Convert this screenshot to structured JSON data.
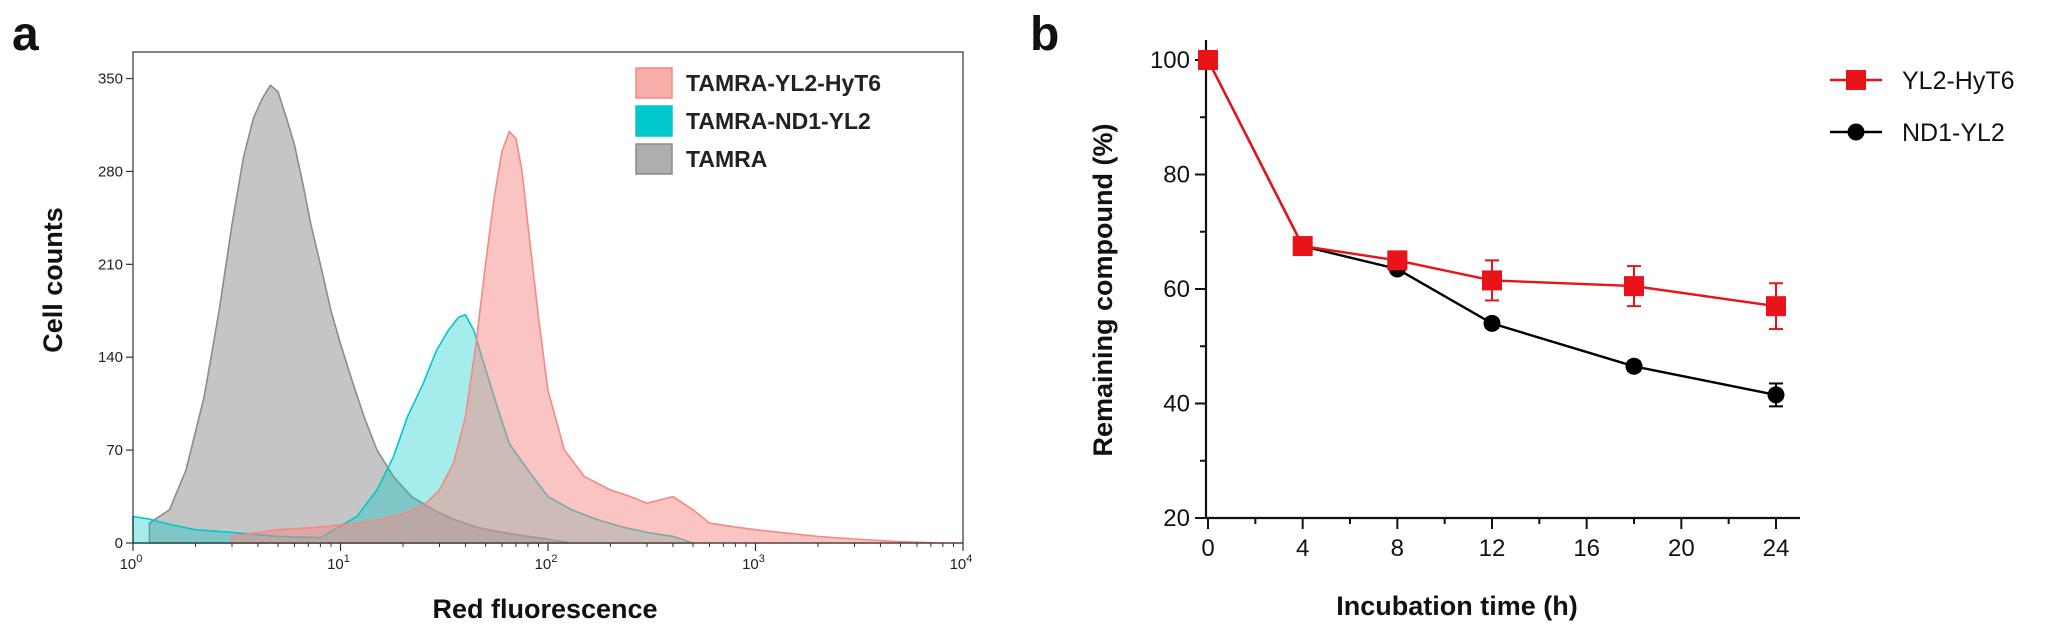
{
  "panels": [
    {
      "letter": "a"
    },
    {
      "letter": "b"
    }
  ],
  "colors": {
    "tamra_yl2_hyt6": "#f48a84",
    "tamra_nd1_yl2": "#00c8cc",
    "tamra": "#8c8c8c",
    "yl2_hyt6": "#e8141a",
    "nd1_yl2": "#000000"
  },
  "chart_data": [
    {
      "type": "area",
      "panel": "a",
      "xlabel": "Red fluorescence",
      "ylabel": "Cell counts",
      "xscale": "log",
      "xlim": [
        1,
        10000
      ],
      "ylim": [
        0,
        370
      ],
      "x_ticks": [
        1,
        10,
        100,
        1000,
        10000
      ],
      "x_tick_labels": [
        {
          "base": "10",
          "exp": "0"
        },
        {
          "base": "10",
          "exp": "1"
        },
        {
          "base": "10",
          "exp": "2"
        },
        {
          "base": "10",
          "exp": "3"
        },
        {
          "base": "10",
          "exp": "4"
        }
      ],
      "y_ticks": [
        0,
        70,
        140,
        210,
        280,
        350
      ],
      "y_tick_labels": [
        "0",
        "70",
        "140",
        "210",
        "280",
        "350"
      ],
      "grid": false,
      "legend_position": "top-right",
      "series": [
        {
          "name": "TAMRA",
          "color": "#8c8c8c",
          "x": [
            1.2,
            1.5,
            1.8,
            2.2,
            2.6,
            3.0,
            3.4,
            3.8,
            4.2,
            4.6,
            5.0,
            5.5,
            6.0,
            6.6,
            7.2,
            8.0,
            9.0,
            10,
            11.5,
            13,
            15,
            18,
            22,
            28,
            35,
            45,
            60,
            80,
            100,
            130
          ],
          "values": [
            15,
            25,
            55,
            110,
            175,
            240,
            290,
            320,
            335,
            345,
            340,
            320,
            300,
            270,
            240,
            210,
            175,
            150,
            120,
            95,
            70,
            50,
            35,
            25,
            18,
            12,
            8,
            5,
            3,
            0
          ]
        },
        {
          "name": "TAMRA-ND1-YL2",
          "color": "#00c8cc",
          "x": [
            1.0,
            1.2,
            1.5,
            2.0,
            3.0,
            5.0,
            8.0,
            12,
            15,
            18,
            21,
            25,
            29,
            33,
            37,
            40,
            44,
            48,
            55,
            65,
            80,
            100,
            130,
            170,
            230,
            300,
            400,
            500
          ],
          "values": [
            20,
            18,
            14,
            10,
            8,
            5,
            4,
            20,
            40,
            65,
            95,
            120,
            145,
            160,
            170,
            172,
            160,
            140,
            110,
            75,
            55,
            35,
            25,
            18,
            12,
            8,
            5,
            0
          ]
        },
        {
          "name": "TAMRA-YL2-HyT6",
          "color": "#f48a84",
          "x": [
            3,
            5,
            8,
            12,
            16,
            20,
            25,
            30,
            35,
            40,
            45,
            50,
            55,
            60,
            65,
            70,
            75,
            80,
            90,
            100,
            120,
            150,
            200,
            250,
            300,
            400,
            500,
            600,
            800,
            1000,
            1500,
            2000,
            3000,
            5000,
            8000,
            10000
          ],
          "values": [
            5,
            10,
            12,
            15,
            18,
            22,
            28,
            40,
            60,
            95,
            150,
            210,
            260,
            295,
            310,
            305,
            280,
            240,
            170,
            115,
            70,
            50,
            40,
            35,
            30,
            35,
            25,
            15,
            12,
            10,
            7,
            5,
            3,
            1,
            0,
            0
          ]
        }
      ],
      "legend": [
        {
          "name": "TAMRA-YL2-HyT6",
          "color": "#f48a84"
        },
        {
          "name": "TAMRA-ND1-YL2",
          "color": "#00c8cc"
        },
        {
          "name": "TAMRA",
          "color": "#8c8c8c"
        }
      ]
    },
    {
      "type": "line",
      "panel": "b",
      "xlabel": "Incubation time (h)",
      "ylabel": "Remaining compound (%)",
      "xlim": [
        0,
        25
      ],
      "ylim": [
        20,
        100
      ],
      "x_ticks": [
        0,
        4,
        8,
        12,
        16,
        20,
        24
      ],
      "y_ticks": [
        20,
        40,
        60,
        80,
        100
      ],
      "grid": false,
      "legend_position": "top-right",
      "series": [
        {
          "name": "YL2-HyT6",
          "color": "#e8141a",
          "marker": "square",
          "x": [
            0,
            4,
            8,
            12,
            18,
            24
          ],
          "values": [
            100,
            67.5,
            65,
            61.5,
            60.5,
            57
          ],
          "errors": [
            0,
            1,
            1,
            3.5,
            3.5,
            4
          ]
        },
        {
          "name": "ND1-YL2",
          "color": "#000000",
          "marker": "circle",
          "x": [
            0,
            4,
            8,
            12,
            18,
            24
          ],
          "values": [
            100,
            67.5,
            63.5,
            54,
            46.5,
            41.5
          ],
          "errors": [
            0,
            0.8,
            0.8,
            0.8,
            0.8,
            2
          ]
        }
      ]
    }
  ]
}
